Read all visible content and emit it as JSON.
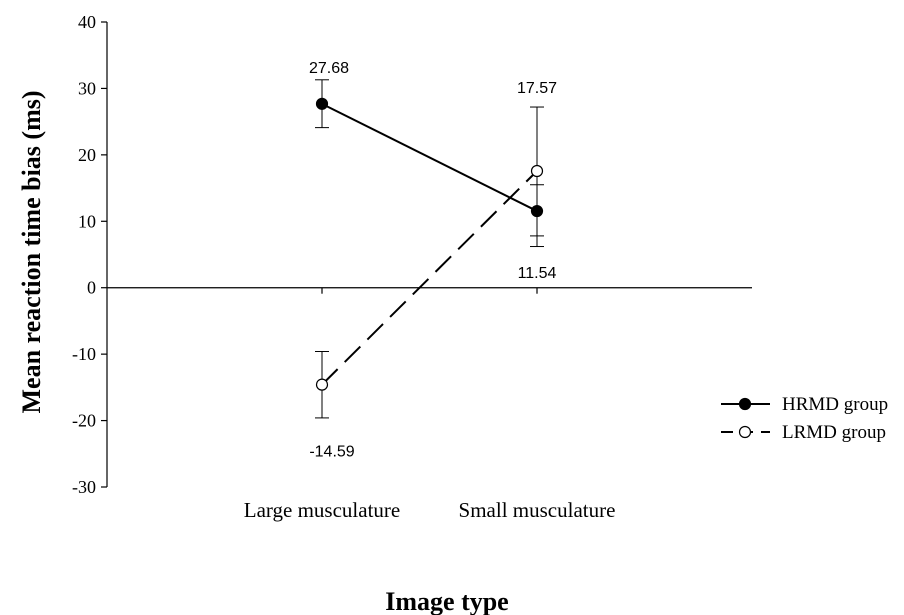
{
  "chart_data": {
    "type": "line",
    "title": "",
    "xlabel": "Image type",
    "ylabel": "Mean reaction time bias (ms)",
    "categories": [
      "Large musculature",
      "Small musculature"
    ],
    "ylim": [
      -30,
      40
    ],
    "yticks": [
      -30,
      -20,
      -10,
      0,
      10,
      20,
      30,
      40
    ],
    "reference_line_y": 0,
    "grid": false,
    "legend_position": "right",
    "series": [
      {
        "name": "HRMD group",
        "values": [
          27.68,
          11.54
        ],
        "labels": [
          "27.68",
          "11.54"
        ],
        "error_low": [
          24.1,
          7.8
        ],
        "error_high": [
          31.3,
          15.5
        ],
        "marker": "filled-circle",
        "line_style": "solid",
        "color": "#000000"
      },
      {
        "name": "LRMD group",
        "values": [
          -14.59,
          17.57
        ],
        "labels": [
          "-14.59",
          "17.57"
        ],
        "error_low": [
          -19.6,
          6.2
        ],
        "error_high": [
          -9.6,
          27.2
        ],
        "marker": "open-circle",
        "line_style": "dashed",
        "color": "#000000"
      }
    ]
  }
}
